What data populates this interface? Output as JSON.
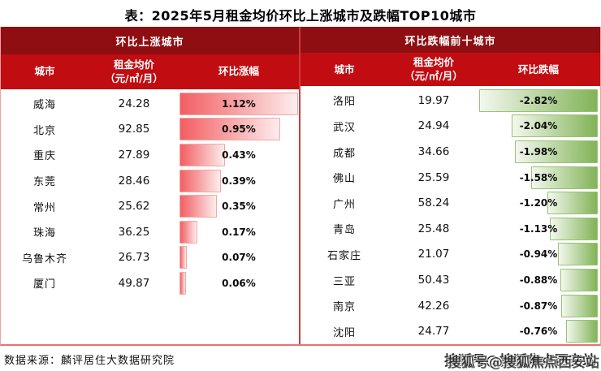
{
  "title": "表：2025年5月租金均价环比上涨城市及跌幅TOP10城市",
  "colors": {
    "section_header_bg": "#8e0e12",
    "column_header_bg": "#c10d12",
    "rise_bar_start": "#f25e62",
    "rise_bar_end": "#fdeded",
    "fall_bar_start": "#f3f8ee",
    "fall_bar_end": "#82b357",
    "panel_divider": "#cf3a3a",
    "frame_border": "#e87272"
  },
  "left_panel": {
    "section_title": "环比上涨城市",
    "columns": {
      "city": "城市",
      "price_line1": "租金均价",
      "price_line2": "（元/㎡/月）",
      "change": "环比涨幅"
    },
    "max_value": 1.12,
    "bar_direction": "up",
    "rows": [
      {
        "city": "威海",
        "price": "24.28",
        "change": "1.12%",
        "value": 1.12
      },
      {
        "city": "北京",
        "price": "92.85",
        "change": "0.95%",
        "value": 0.95
      },
      {
        "city": "重庆",
        "price": "27.89",
        "change": "0.43%",
        "value": 0.43
      },
      {
        "city": "东莞",
        "price": "28.46",
        "change": "0.39%",
        "value": 0.39
      },
      {
        "city": "常州",
        "price": "25.62",
        "change": "0.35%",
        "value": 0.35
      },
      {
        "city": "珠海",
        "price": "36.25",
        "change": "0.17%",
        "value": 0.17
      },
      {
        "city": "乌鲁木齐",
        "price": "26.73",
        "change": "0.07%",
        "value": 0.07
      },
      {
        "city": "厦门",
        "price": "49.87",
        "change": "0.06%",
        "value": 0.06
      }
    ]
  },
  "right_panel": {
    "section_title": "环比跌幅前十城市",
    "columns": {
      "city": "城市",
      "price_line1": "租金均价",
      "price_line2": "（元/㎡/月）",
      "change": "环比跌幅"
    },
    "max_value": 2.82,
    "bar_direction": "down",
    "rows": [
      {
        "city": "洛阳",
        "price": "19.97",
        "change": "-2.82%",
        "value": 2.82
      },
      {
        "city": "武汉",
        "price": "24.94",
        "change": "-2.04%",
        "value": 2.04
      },
      {
        "city": "成都",
        "price": "34.66",
        "change": "-1.98%",
        "value": 1.98
      },
      {
        "city": "佛山",
        "price": "25.59",
        "change": "-1.58%",
        "value": 1.58
      },
      {
        "city": "广州",
        "price": "58.24",
        "change": "-1.20%",
        "value": 1.2
      },
      {
        "city": "青岛",
        "price": "25.48",
        "change": "-1.13%",
        "value": 1.13
      },
      {
        "city": "石家庄",
        "price": "21.07",
        "change": "-0.94%",
        "value": 0.94
      },
      {
        "city": "三亚",
        "price": "50.43",
        "change": "-0.88%",
        "value": 0.88
      },
      {
        "city": "南京",
        "price": "42.26",
        "change": "-0.87%",
        "value": 0.87
      },
      {
        "city": "沈阳",
        "price": "24.77",
        "change": "-0.76%",
        "value": 0.76
      }
    ]
  },
  "footer": {
    "source": "数据来源：麟评居住大数据研究院",
    "watermark": "搜狐号@搜狐焦点西安站"
  },
  "chart_data": [
    {
      "type": "table",
      "title": "环比上涨城市",
      "columns": [
        "城市",
        "租金均价（元/㎡/月）",
        "环比涨幅"
      ],
      "rows": [
        [
          "威海",
          24.28,
          "1.12%"
        ],
        [
          "北京",
          92.85,
          "0.95%"
        ],
        [
          "重庆",
          27.89,
          "0.43%"
        ],
        [
          "东莞",
          28.46,
          "0.39%"
        ],
        [
          "常州",
          25.62,
          "0.35%"
        ],
        [
          "珠海",
          36.25,
          "0.17%"
        ],
        [
          "乌鲁木齐",
          26.73,
          "0.07%"
        ],
        [
          "厦门",
          49.87,
          "0.06%"
        ]
      ],
      "bar_column": "环比涨幅",
      "bar_scale_max": 1.12,
      "bar_color": "red-gradient"
    },
    {
      "type": "table",
      "title": "环比跌幅前十城市",
      "columns": [
        "城市",
        "租金均价（元/㎡/月）",
        "环比跌幅"
      ],
      "rows": [
        [
          "洛阳",
          19.97,
          "-2.82%"
        ],
        [
          "武汉",
          24.94,
          "-2.04%"
        ],
        [
          "成都",
          34.66,
          "-1.98%"
        ],
        [
          "佛山",
          25.59,
          "-1.58%"
        ],
        [
          "广州",
          58.24,
          "-1.20%"
        ],
        [
          "青岛",
          25.48,
          "-1.13%"
        ],
        [
          "石家庄",
          21.07,
          "-0.94%"
        ],
        [
          "三亚",
          50.43,
          "-0.88%"
        ],
        [
          "南京",
          42.26,
          "-0.87%"
        ],
        [
          "沈阳",
          24.77,
          "-0.76%"
        ]
      ],
      "bar_column": "环比跌幅",
      "bar_scale_max": 2.82,
      "bar_color": "green-gradient"
    }
  ]
}
